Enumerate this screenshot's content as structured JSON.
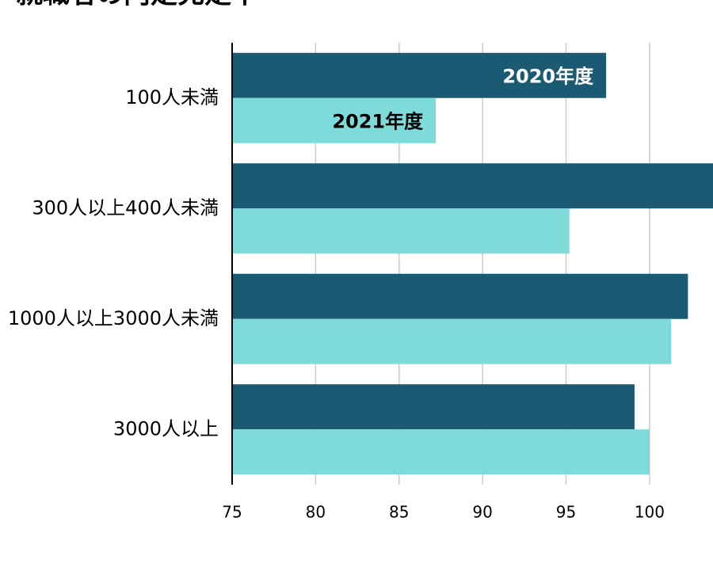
{
  "chart_data": {
    "type": "barh",
    "title": "就職者の内定充足率",
    "categories": [
      "100人未満",
      "300人以上400人未満",
      "1000人以上3000人未満",
      "3000人以上"
    ],
    "series": [
      {
        "name": "2020年度",
        "color": "#1a5a73",
        "label_color": "#ffffff",
        "values": [
          97.4,
          104,
          102.3,
          99.1
        ]
      },
      {
        "name": "2021年度",
        "color": "#7fdbd9",
        "label_color": "#000000",
        "values": [
          87.2,
          95.2,
          101.3,
          100.0
        ]
      }
    ],
    "xlim": [
      75,
      103.8
    ],
    "xticks": [
      75,
      80,
      85,
      90,
      95,
      100
    ],
    "grid": true
  }
}
